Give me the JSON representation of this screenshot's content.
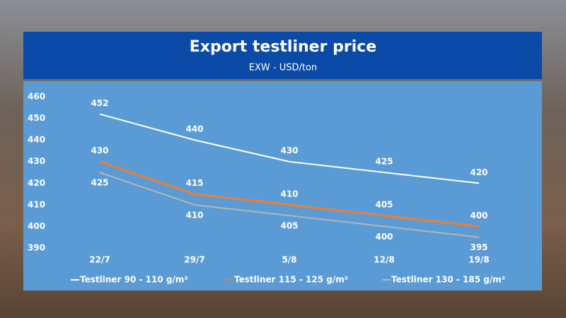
{
  "chart_data": {
    "type": "line",
    "title": "Export testliner price",
    "subtitle": "EXW - USD/ton",
    "categories": [
      "22/7",
      "29/7",
      "5/8",
      "12/8",
      "19/8"
    ],
    "series": [
      {
        "name": "Testliner 90 - 110 g/m²",
        "color": "#ffffff",
        "values": [
          452,
          440,
          430,
          425,
          420
        ]
      },
      {
        "name": "Testliner 115 - 125 g/m²",
        "color": "#ed7d31",
        "values": [
          430,
          415,
          410,
          405,
          400
        ]
      },
      {
        "name": "Testliner 130 - 185 g/m²",
        "color": "#b4b4b4",
        "values": [
          425,
          410,
          405,
          400,
          395
        ]
      }
    ],
    "ylim": [
      390,
      460
    ],
    "yticks": [
      390,
      400,
      410,
      420,
      430,
      440,
      450,
      460
    ],
    "grid": false,
    "legend": "bottom"
  }
}
